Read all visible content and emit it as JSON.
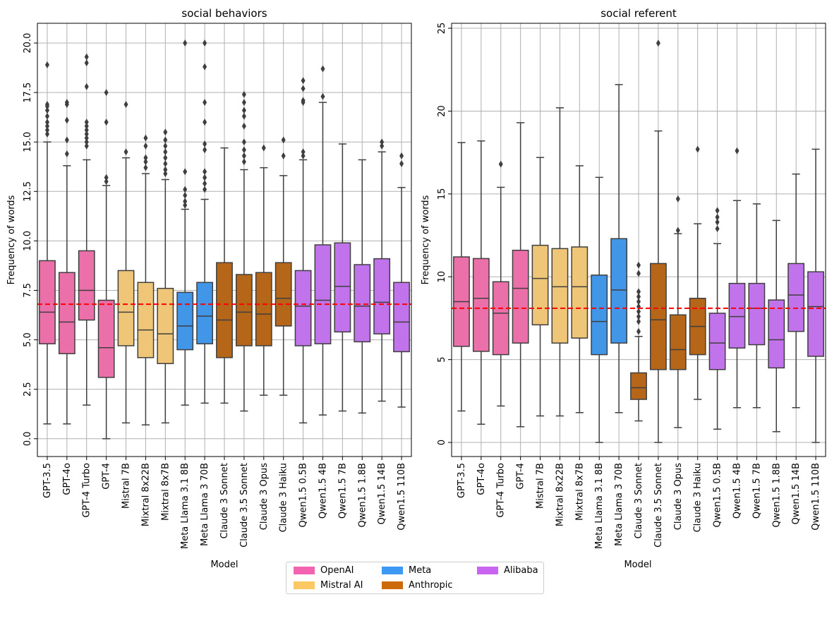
{
  "chart_data": [
    {
      "type": "box",
      "title": "social behaviors",
      "xlabel": "Model",
      "ylabel": "Frequency of words",
      "ylim": [
        -0.9,
        21.0
      ],
      "yticks": [
        "0.0",
        "2.5",
        "5.0",
        "7.5",
        "10.0",
        "12.5",
        "15.0",
        "17.5",
        "20.0"
      ],
      "ytick_values": [
        0,
        2.5,
        5,
        7.5,
        10,
        12.5,
        15,
        17.5,
        20
      ],
      "reference_line": 6.8,
      "grid": true,
      "models": [
        {
          "name": "GPT-3.5",
          "vendor": "OpenAI",
          "whislo": 0.75,
          "q1": 4.8,
          "med": 6.4,
          "q3": 9.0,
          "whishi": 15.0,
          "fliers": [
            15.4,
            15.6,
            15.8,
            16.0,
            16.3,
            16.6,
            16.8,
            16.9,
            18.9
          ]
        },
        {
          "name": "GPT-4o",
          "vendor": "OpenAI",
          "whislo": 0.75,
          "q1": 4.3,
          "med": 5.9,
          "q3": 8.4,
          "whishi": 13.8,
          "fliers": [
            14.4,
            15.1,
            16.1,
            16.9,
            17.0
          ]
        },
        {
          "name": "GPT-4 Turbo",
          "vendor": "OpenAI",
          "whislo": 1.7,
          "q1": 6.0,
          "med": 7.5,
          "q3": 9.5,
          "whishi": 14.1,
          "fliers": [
            14.8,
            15.0,
            15.2,
            15.4,
            15.6,
            15.8,
            16.0,
            17.8,
            19.0,
            19.3
          ]
        },
        {
          "name": "GPT-4",
          "vendor": "OpenAI",
          "whislo": 0.0,
          "q1": 3.1,
          "med": 4.6,
          "q3": 7.0,
          "whishi": 12.8,
          "fliers": [
            13.0,
            13.2,
            16.0,
            17.5
          ]
        },
        {
          "name": "Mistral 7B",
          "vendor": "Mistral AI",
          "whislo": 0.8,
          "q1": 4.7,
          "med": 6.4,
          "q3": 8.5,
          "whishi": 14.2,
          "fliers": [
            14.5,
            16.9
          ]
        },
        {
          "name": "Mixtral 8x22B",
          "vendor": "Mistral AI",
          "whislo": 0.7,
          "q1": 4.1,
          "med": 5.5,
          "q3": 7.9,
          "whishi": 13.4,
          "fliers": [
            13.7,
            14.0,
            14.2,
            14.8,
            15.2
          ]
        },
        {
          "name": "Mixtral 8x7B",
          "vendor": "Mistral AI",
          "whislo": 0.8,
          "q1": 3.8,
          "med": 5.3,
          "q3": 7.6,
          "whishi": 13.1,
          "fliers": [
            13.4,
            13.6,
            13.9,
            14.2,
            14.5,
            14.8,
            15.1,
            15.5
          ]
        },
        {
          "name": "Meta Llama 3.1 8B",
          "vendor": "Meta",
          "whislo": 1.7,
          "q1": 4.5,
          "med": 5.7,
          "q3": 7.4,
          "whishi": 11.6,
          "fliers": [
            11.8,
            12.0,
            12.3,
            12.6,
            13.5,
            20.0
          ]
        },
        {
          "name": "Meta Llama 3 70B",
          "vendor": "Meta",
          "whislo": 1.8,
          "q1": 4.8,
          "med": 6.2,
          "q3": 7.9,
          "whishi": 12.1,
          "fliers": [
            12.6,
            12.9,
            13.2,
            13.5,
            14.6,
            14.9,
            16.0,
            17.0,
            18.8,
            20.0
          ]
        },
        {
          "name": "Claude 3 Sonnet",
          "vendor": "Anthropic",
          "whislo": 1.8,
          "q1": 4.1,
          "med": 6.0,
          "q3": 8.9,
          "whishi": 14.7,
          "fliers": []
        },
        {
          "name": "Claude 3.5 Sonnet",
          "vendor": "Anthropic",
          "whislo": 1.4,
          "q1": 4.7,
          "med": 6.4,
          "q3": 8.3,
          "whishi": 13.6,
          "fliers": [
            14.0,
            14.3,
            14.6,
            15.0,
            15.8,
            16.3,
            16.6,
            17.0,
            17.4
          ]
        },
        {
          "name": "Claude 3 Opus",
          "vendor": "Anthropic",
          "whislo": 2.2,
          "q1": 4.7,
          "med": 6.3,
          "q3": 8.4,
          "whishi": 13.7,
          "fliers": [
            14.7
          ]
        },
        {
          "name": "Claude 3 Haiku",
          "vendor": "Anthropic",
          "whislo": 2.2,
          "q1": 5.7,
          "med": 7.1,
          "q3": 8.9,
          "whishi": 13.3,
          "fliers": [
            14.3,
            15.1
          ]
        },
        {
          "name": "Qwen1.5 0.5B",
          "vendor": "Alibaba",
          "whislo": 0.8,
          "q1": 4.7,
          "med": 6.7,
          "q3": 8.5,
          "whishi": 14.1,
          "fliers": [
            14.3,
            14.5,
            17.0,
            17.1,
            17.7,
            18.1
          ]
        },
        {
          "name": "Qwen1.5 4B",
          "vendor": "Alibaba",
          "whislo": 1.2,
          "q1": 4.8,
          "med": 7.0,
          "q3": 9.8,
          "whishi": 17.0,
          "fliers": [
            17.3,
            18.7
          ]
        },
        {
          "name": "Qwen1.5 7B",
          "vendor": "Alibaba",
          "whislo": 1.4,
          "q1": 5.4,
          "med": 7.7,
          "q3": 9.9,
          "whishi": 14.9,
          "fliers": []
        },
        {
          "name": "Qwen1.5 1.8B",
          "vendor": "Alibaba",
          "whislo": 1.3,
          "q1": 4.9,
          "med": 6.7,
          "q3": 8.8,
          "whishi": 14.1,
          "fliers": []
        },
        {
          "name": "Qwen1.5 14B",
          "vendor": "Alibaba",
          "whislo": 1.9,
          "q1": 5.3,
          "med": 6.9,
          "q3": 9.1,
          "whishi": 14.5,
          "fliers": [
            14.8,
            15.0
          ]
        },
        {
          "name": "Qwen1.5 110B",
          "vendor": "Alibaba",
          "whislo": 1.6,
          "q1": 4.4,
          "med": 5.9,
          "q3": 7.9,
          "whishi": 12.7,
          "fliers": [
            13.9,
            14.3
          ]
        }
      ]
    },
    {
      "type": "box",
      "title": "social referent",
      "xlabel": "Model",
      "ylabel": "Frequency of words",
      "ylim": [
        -0.85,
        25.3
      ],
      "yticks": [
        "0",
        "5",
        "10",
        "15",
        "20",
        "25"
      ],
      "ytick_values": [
        0,
        5,
        10,
        15,
        20,
        25
      ],
      "reference_line": 8.1,
      "grid": true,
      "models": [
        {
          "name": "GPT-3.5",
          "vendor": "OpenAI",
          "whislo": 1.9,
          "q1": 5.8,
          "med": 8.5,
          "q3": 11.2,
          "whishi": 18.1,
          "fliers": []
        },
        {
          "name": "GPT-4o",
          "vendor": "OpenAI",
          "whislo": 1.1,
          "q1": 5.5,
          "med": 8.7,
          "q3": 11.1,
          "whishi": 18.2,
          "fliers": []
        },
        {
          "name": "GPT-4 Turbo",
          "vendor": "OpenAI",
          "whislo": 2.2,
          "q1": 5.3,
          "med": 7.8,
          "q3": 9.7,
          "whishi": 15.4,
          "fliers": [
            16.8
          ]
        },
        {
          "name": "GPT-4",
          "vendor": "OpenAI",
          "whislo": 0.95,
          "q1": 6.0,
          "med": 9.3,
          "q3": 11.6,
          "whishi": 19.3,
          "fliers": []
        },
        {
          "name": "Mistral 7B",
          "vendor": "Mistral AI",
          "whislo": 1.6,
          "q1": 7.1,
          "med": 9.9,
          "q3": 11.9,
          "whishi": 17.2,
          "fliers": []
        },
        {
          "name": "Mixtral 8x22B",
          "vendor": "Mistral AI",
          "whislo": 1.6,
          "q1": 6.0,
          "med": 9.4,
          "q3": 11.7,
          "whishi": 20.2,
          "fliers": []
        },
        {
          "name": "Mixtral 8x7B",
          "vendor": "Mistral AI",
          "whislo": 1.8,
          "q1": 6.3,
          "med": 9.4,
          "q3": 11.8,
          "whishi": 16.7,
          "fliers": []
        },
        {
          "name": "Meta Llama 3.1 8B",
          "vendor": "Meta",
          "whislo": 0.0,
          "q1": 5.3,
          "med": 7.3,
          "q3": 10.1,
          "whishi": 16.0,
          "fliers": []
        },
        {
          "name": "Meta Llama 3 70B",
          "vendor": "Meta",
          "whislo": 1.8,
          "q1": 6.0,
          "med": 9.2,
          "q3": 12.3,
          "whishi": 21.6,
          "fliers": []
        },
        {
          "name": "Claude 3 Sonnet",
          "vendor": "Anthropic",
          "whislo": 1.3,
          "q1": 2.6,
          "med": 3.3,
          "q3": 4.2,
          "whishi": 6.4,
          "fliers": [
            6.7,
            7.3,
            7.6,
            7.9,
            8.2,
            8.5,
            8.8,
            9.1,
            10.2,
            10.7
          ]
        },
        {
          "name": "Claude 3.5 Sonnet",
          "vendor": "Anthropic",
          "whislo": 0.0,
          "q1": 4.4,
          "med": 7.4,
          "q3": 10.8,
          "whishi": 18.8,
          "fliers": [
            24.1
          ]
        },
        {
          "name": "Claude 3 Opus",
          "vendor": "Anthropic",
          "whislo": 0.9,
          "q1": 4.4,
          "med": 5.6,
          "q3": 7.7,
          "whishi": 12.6,
          "fliers": [
            12.8,
            14.7
          ]
        },
        {
          "name": "Claude 3 Haiku",
          "vendor": "Anthropic",
          "whislo": 2.6,
          "q1": 5.3,
          "med": 7.0,
          "q3": 8.7,
          "whishi": 13.2,
          "fliers": [
            17.7
          ]
        },
        {
          "name": "Qwen1.5 0.5B",
          "vendor": "Alibaba",
          "whislo": 0.8,
          "q1": 4.4,
          "med": 6.0,
          "q3": 7.8,
          "whishi": 12.0,
          "fliers": [
            12.9,
            13.3,
            13.6,
            14.0
          ]
        },
        {
          "name": "Qwen1.5 4B",
          "vendor": "Alibaba",
          "whislo": 2.1,
          "q1": 5.7,
          "med": 7.6,
          "q3": 9.6,
          "whishi": 14.6,
          "fliers": [
            17.6
          ]
        },
        {
          "name": "Qwen1.5 7B",
          "vendor": "Alibaba",
          "whislo": 2.1,
          "q1": 5.9,
          "med": 8.1,
          "q3": 9.6,
          "whishi": 14.4,
          "fliers": []
        },
        {
          "name": "Qwen1.5 1.8B",
          "vendor": "Alibaba",
          "whislo": 0.65,
          "q1": 4.5,
          "med": 6.2,
          "q3": 8.6,
          "whishi": 13.4,
          "fliers": []
        },
        {
          "name": "Qwen1.5 14B",
          "vendor": "Alibaba",
          "whislo": 2.1,
          "q1": 6.7,
          "med": 8.9,
          "q3": 10.8,
          "whishi": 16.2,
          "fliers": []
        },
        {
          "name": "Qwen1.5 110B",
          "vendor": "Alibaba",
          "whislo": 0.0,
          "q1": 5.2,
          "med": 8.2,
          "q3": 10.3,
          "whishi": 17.7,
          "fliers": []
        }
      ]
    }
  ],
  "legend": {
    "entries": [
      {
        "label": "OpenAI",
        "color": "#f263b0"
      },
      {
        "label": "Mistral AI",
        "color": "#fcc862"
      },
      {
        "label": "Meta",
        "color": "#3b99f3"
      },
      {
        "label": "Anthropic",
        "color": "#cc6a0c"
      },
      {
        "label": "Alibaba",
        "color": "#c863f2"
      }
    ]
  },
  "colors": {
    "vendors": {
      "OpenAI": "#eb6fa9",
      "Mistral AI": "#efc677",
      "Meta": "#4196e8",
      "Anthropic": "#b56619",
      "Alibaba": "#c073ea"
    },
    "reference_line": "#ff0000",
    "grid": "#b0b0b0",
    "box_edge": "#3f3f3f"
  }
}
